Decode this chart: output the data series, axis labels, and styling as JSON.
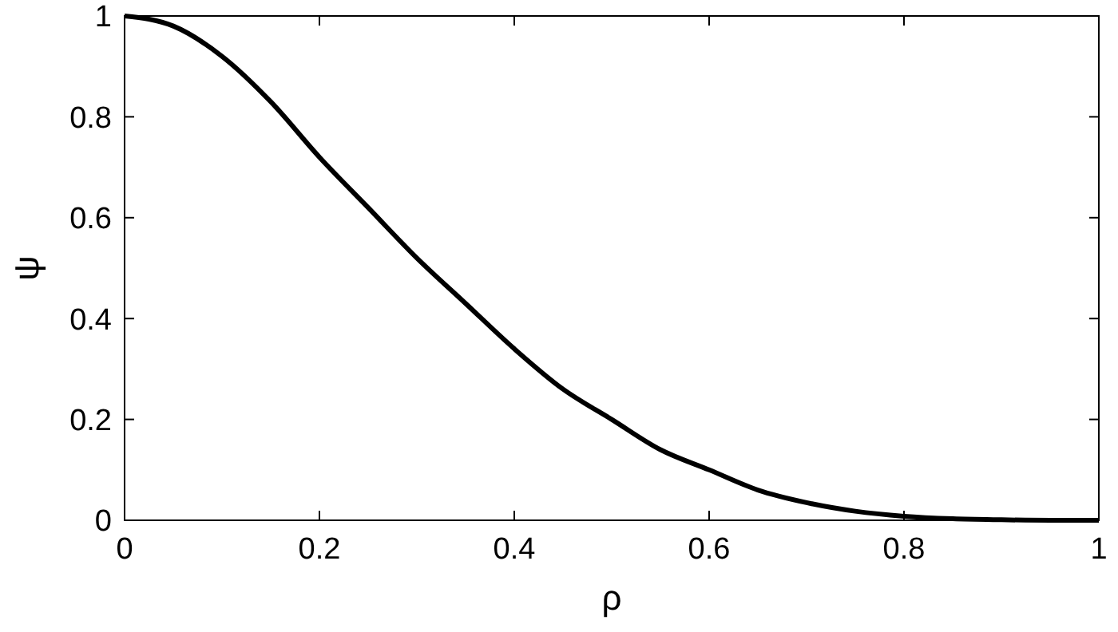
{
  "chart_data": {
    "type": "line",
    "xlabel": "ρ",
    "ylabel": "ψ",
    "x": [
      0,
      0.05,
      0.1,
      0.15,
      0.2,
      0.25,
      0.3,
      0.35,
      0.4,
      0.45,
      0.5,
      0.55,
      0.6,
      0.65,
      0.7,
      0.75,
      0.8,
      0.85,
      0.9,
      0.95,
      1
    ],
    "series": [
      {
        "color": "#000000",
        "values": [
          1,
          0.98,
          0.92,
          0.83,
          0.72,
          0.62,
          0.52,
          0.43,
          0.34,
          0.26,
          0.2,
          0.14,
          0.1,
          0.06,
          0.035,
          0.018,
          0.008,
          0.003,
          0.001,
          0,
          0
        ]
      }
    ],
    "xlim": [
      0,
      1
    ],
    "ylim": [
      0,
      1
    ],
    "xticks": [
      0,
      0.2,
      0.4,
      0.6,
      0.8,
      1
    ],
    "yticks": [
      0,
      0.2,
      0.4,
      0.6,
      0.8,
      1
    ],
    "grid": false,
    "marker": "none",
    "line_style": "solid"
  }
}
